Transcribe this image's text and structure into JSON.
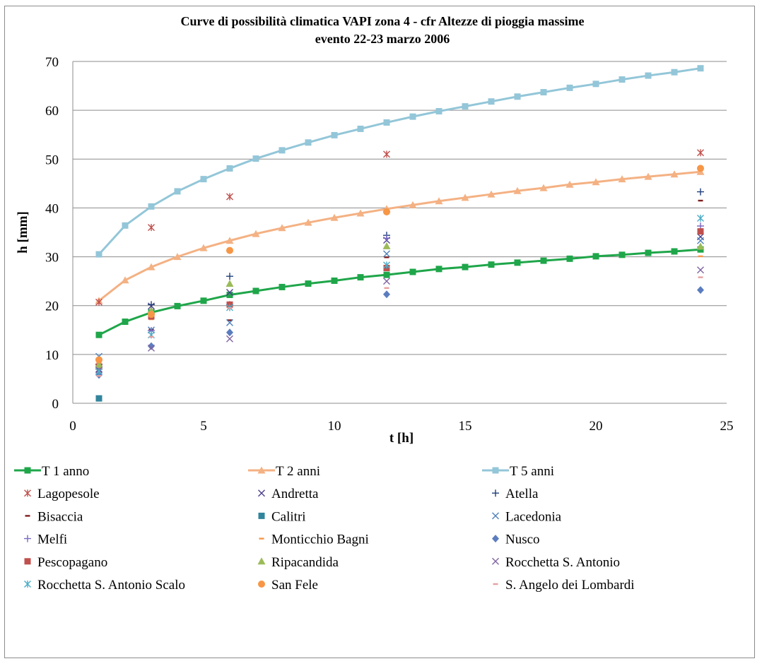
{
  "chart_data": {
    "type": "scatter",
    "title_line1": "Curve di possibilità climatica VAPI zona 4 - cfr Altezze di pioggia massime",
    "title_line2": "evento 22-23 marzo 2006",
    "xlabel": "t [h]",
    "ylabel": "h [mm]",
    "xlim": [
      0,
      25
    ],
    "ylim": [
      0,
      70
    ],
    "x_ticks": [
      "0",
      "5",
      "10",
      "15",
      "20",
      "25"
    ],
    "y_ticks": [
      "0",
      "10",
      "20",
      "30",
      "40",
      "50",
      "60",
      "70"
    ],
    "grid": "horizontal",
    "legend_position": "bottom",
    "curves": [
      {
        "name": "T 1 anno",
        "color": "#1fa64a",
        "marker": "square",
        "x": [
          1,
          2,
          3,
          4,
          5,
          6,
          7,
          8,
          9,
          10,
          11,
          12,
          13,
          14,
          15,
          16,
          17,
          18,
          19,
          20,
          21,
          22,
          23,
          24
        ],
        "y": [
          14.0,
          16.7,
          18.6,
          19.9,
          21.0,
          22.2,
          23.0,
          23.8,
          24.5,
          25.1,
          25.8,
          26.3,
          26.9,
          27.5,
          27.9,
          28.4,
          28.8,
          29.2,
          29.6,
          30.1,
          30.4,
          30.8,
          31.1,
          31.5
        ]
      },
      {
        "name": "T 2 anni",
        "color": "#f4b183",
        "marker": "triangle",
        "x": [
          1,
          2,
          3,
          4,
          5,
          6,
          7,
          8,
          9,
          10,
          11,
          12,
          13,
          14,
          15,
          16,
          17,
          18,
          19,
          20,
          21,
          22,
          23,
          24
        ],
        "y": [
          21.0,
          25.2,
          27.9,
          30.0,
          31.8,
          33.3,
          34.7,
          35.9,
          37.0,
          38.0,
          38.9,
          39.8,
          40.6,
          41.4,
          42.1,
          42.8,
          43.5,
          44.1,
          44.8,
          45.3,
          45.9,
          46.4,
          46.9,
          47.4
        ]
      },
      {
        "name": "T 5 anni",
        "color": "#93c6d8",
        "marker": "square",
        "x": [
          1,
          2,
          3,
          4,
          5,
          6,
          7,
          8,
          9,
          10,
          11,
          12,
          13,
          14,
          15,
          16,
          17,
          18,
          19,
          20,
          21,
          22,
          23,
          24
        ],
        "y": [
          30.5,
          36.4,
          40.3,
          43.4,
          45.9,
          48.1,
          50.1,
          51.8,
          53.4,
          54.9,
          56.2,
          57.5,
          58.7,
          59.8,
          60.8,
          61.8,
          62.8,
          63.7,
          64.6,
          65.4,
          66.3,
          67.1,
          67.8,
          68.6
        ]
      }
    ],
    "stations": [
      {
        "name": "Lagopesole",
        "color": "#c0504d",
        "marker": "star",
        "points": [
          [
            1,
            20.7
          ],
          [
            3,
            36.0
          ],
          [
            6,
            42.3
          ],
          [
            12,
            51.0
          ],
          [
            24,
            51.3
          ]
        ]
      },
      {
        "name": "Andretta",
        "color": "#4b3f8c",
        "marker": "x",
        "points": [
          [
            1,
            7.0
          ],
          [
            3,
            19.9
          ],
          [
            6,
            22.7
          ],
          [
            12,
            33.4
          ],
          [
            24,
            34.1
          ]
        ]
      },
      {
        "name": "Atella",
        "color": "#1f3f7a",
        "marker": "plus",
        "points": [
          [
            1,
            8.0
          ],
          [
            3,
            20.2
          ],
          [
            6,
            26.0
          ],
          [
            12,
            34.4
          ],
          [
            24,
            43.3
          ]
        ]
      },
      {
        "name": "Bisaccia",
        "color": "#7f1f1f",
        "marker": "dash",
        "points": [
          [
            1,
            8.6
          ],
          [
            3,
            15.1
          ],
          [
            6,
            17.0
          ],
          [
            12,
            29.9
          ],
          [
            24,
            41.5
          ]
        ]
      },
      {
        "name": "Calitri",
        "color": "#31859c",
        "marker": "square",
        "points": [
          [
            1,
            1.0
          ]
        ]
      },
      {
        "name": "Lacedonia",
        "color": "#4f81bd",
        "marker": "x",
        "points": [
          [
            1,
            9.6
          ],
          [
            3,
            15.0
          ],
          [
            6,
            16.5
          ],
          [
            12,
            30.6
          ],
          [
            24,
            33.3
          ]
        ]
      },
      {
        "name": "Melfi",
        "color": "#7b68c4",
        "marker": "plus",
        "points": [
          [
            1,
            7.0
          ],
          [
            3,
            14.9
          ],
          [
            6,
            20.2
          ],
          [
            12,
            33.8
          ],
          [
            24,
            36.3
          ]
        ]
      },
      {
        "name": "Monticchio Bagni",
        "color": "#f79646",
        "marker": "dash",
        "points": [
          [
            1,
            8.3
          ],
          [
            3,
            17.2
          ],
          [
            6,
            19.8
          ],
          [
            12,
            28.0
          ],
          [
            24,
            30.1
          ]
        ]
      },
      {
        "name": "Nusco",
        "color": "#5b7dbf",
        "marker": "diamond",
        "points": [
          [
            1,
            5.8
          ],
          [
            3,
            11.7
          ],
          [
            6,
            14.5
          ],
          [
            12,
            22.3
          ],
          [
            24,
            23.2
          ]
        ]
      },
      {
        "name": "Pescopagano",
        "color": "#c0504d",
        "marker": "square",
        "points": [
          [
            1,
            7.5
          ],
          [
            3,
            17.8
          ],
          [
            6,
            20.2
          ],
          [
            12,
            27.7
          ],
          [
            24,
            35.2
          ]
        ]
      },
      {
        "name": "Ripacandida",
        "color": "#9bbb59",
        "marker": "triangle",
        "points": [
          [
            1,
            7.9
          ],
          [
            3,
            19.0
          ],
          [
            6,
            24.5
          ],
          [
            12,
            32.2
          ],
          [
            24,
            32.1
          ]
        ]
      },
      {
        "name": "Rocchetta S. Antonio",
        "color": "#8064a2",
        "marker": "x",
        "points": [
          [
            1,
            6.8
          ],
          [
            3,
            11.3
          ],
          [
            6,
            13.2
          ],
          [
            12,
            25.0
          ],
          [
            24,
            27.3
          ]
        ]
      },
      {
        "name": "Rocchetta S. Antonio Scalo",
        "color": "#4bacc6",
        "marker": "star",
        "points": [
          [
            1,
            6.5
          ],
          [
            3,
            14.0
          ],
          [
            6,
            19.6
          ],
          [
            12,
            28.3
          ],
          [
            24,
            37.9
          ]
        ]
      },
      {
        "name": "San Fele",
        "color": "#f79646",
        "marker": "circle",
        "points": [
          [
            1,
            8.9
          ],
          [
            3,
            18.2
          ],
          [
            6,
            31.3
          ],
          [
            12,
            39.2
          ],
          [
            24,
            48.1
          ]
        ]
      },
      {
        "name": "S. Angelo dei Lombardi",
        "color": "#e6a0a0",
        "marker": "dash",
        "points": [
          [
            1,
            5.6
          ],
          [
            3,
            13.6
          ],
          [
            6,
            19.5
          ],
          [
            12,
            23.6
          ],
          [
            24,
            25.8
          ]
        ]
      }
    ]
  }
}
